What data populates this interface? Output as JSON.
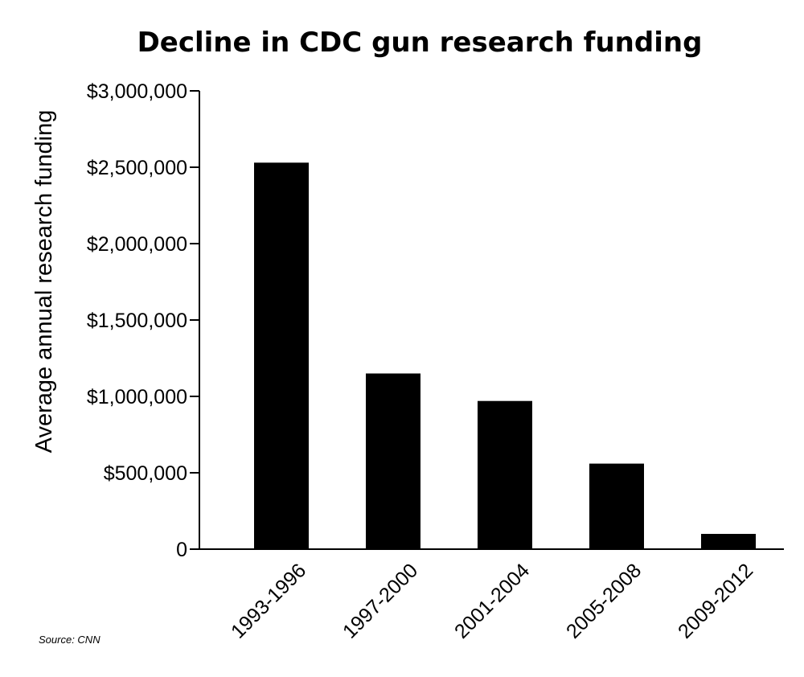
{
  "chart_data": {
    "type": "bar",
    "title": "Decline in CDC gun research funding",
    "xlabel": "",
    "ylabel": "Average annual research funding",
    "categories": [
      "1993-1996",
      "1997-2000",
      "2001-2004",
      "2005-2008",
      "2009-2012"
    ],
    "values": [
      2530000,
      1150000,
      970000,
      560000,
      100000
    ],
    "ylim": [
      0,
      3000000
    ],
    "yticks": [
      0,
      500000,
      1000000,
      1500000,
      2000000,
      2500000,
      3000000
    ],
    "ytick_labels": [
      "0",
      "$500,000",
      "$1,000,000",
      "$1,500,000",
      "$2,000,000",
      "$2,500,000",
      "$3,000,000"
    ],
    "bar_color": "#000000",
    "grid": false,
    "legend": "none",
    "source": "Source: CNN"
  }
}
